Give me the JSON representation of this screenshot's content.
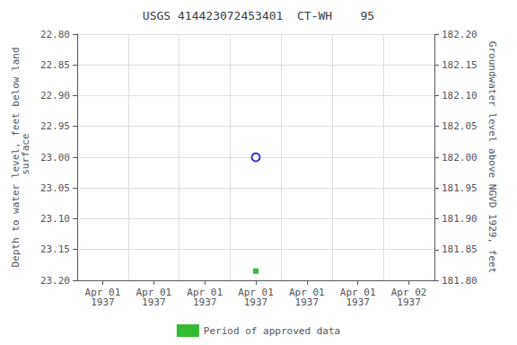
{
  "chart_data": {
    "type": "scatter",
    "title": "USGS 414423072453401  CT-WH    95",
    "y_label": "Depth to water level, feet below land\n surface",
    "y2_label": "Groundwater level above NGVD 1929, feet",
    "categories": [
      "Apr 01\n1937",
      "Apr 01\n1937",
      "Apr 01\n1937",
      "Apr 01\n1937",
      "Apr 01\n1937",
      "Apr 01\n1937",
      "Apr 02\n1937"
    ],
    "series": [
      {
        "color": "#0000cc",
        "marker": "open_circle",
        "values": [
          null,
          null,
          null,
          23.0,
          null,
          null,
          null
        ]
      },
      {
        "name": "Period of approved data",
        "color": "#00aa00",
        "marker": "square",
        "values": [
          null,
          null,
          null,
          23.185,
          null,
          null,
          null
        ]
      }
    ],
    "ylim": [
      23.2,
      22.8
    ],
    "yticks": [
      {
        "value": 22.8,
        "label": "22.80"
      },
      22.85,
      {
        "value": 22.9,
        "label": "22.90"
      },
      22.95,
      {
        "value": 23.0,
        "label": "23.00"
      },
      23.05,
      {
        "value": 23.1,
        "label": "23.10"
      },
      23.15,
      {
        "value": 23.2,
        "label": "23.20"
      }
    ],
    "y2lim": [
      181.8,
      182.2
    ],
    "y2ticks": [
      {
        "value": 182.2,
        "label": "182.20"
      },
      182.15,
      {
        "value": 182.1,
        "label": "182.10"
      },
      182.05,
      {
        "value": 182.0,
        "label": "182.00"
      },
      181.95,
      {
        "value": 181.9,
        "label": "181.90"
      },
      181.85,
      {
        "value": 181.8,
        "label": "181.80"
      }
    ],
    "grid": true,
    "legend": "bottom"
  }
}
